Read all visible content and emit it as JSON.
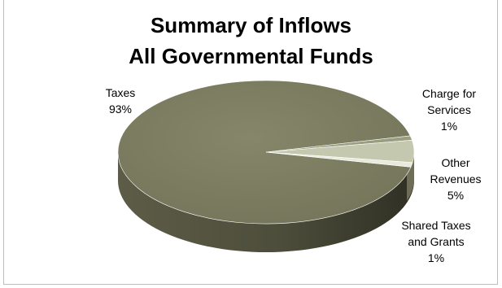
{
  "chart_data": {
    "type": "pie",
    "style": "3d",
    "title": [
      "Summary of Inflows",
      "All Governmental Funds"
    ],
    "slices": [
      {
        "label": [
          "Taxes"
        ],
        "pct_label": "93%",
        "value": 93,
        "color": "#7f7f62"
      },
      {
        "label": [
          "Charge for",
          "Services"
        ],
        "pct_label": "1%",
        "value": 1,
        "color": "#9a9e80"
      },
      {
        "label": [
          "Other",
          "Revenues"
        ],
        "pct_label": "5%",
        "value": 5,
        "color": "#c4c8ae"
      },
      {
        "label": [
          "Shared Taxes",
          "and Grants"
        ],
        "pct_label": "1%",
        "value": 1,
        "color": "#e8eadc"
      }
    ]
  }
}
